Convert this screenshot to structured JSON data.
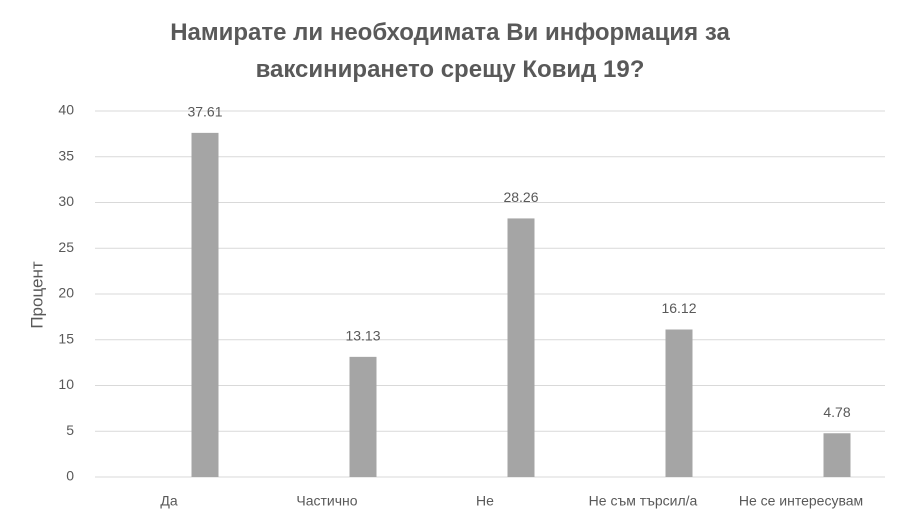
{
  "chart_data": {
    "type": "bar",
    "title": "Намирате ли необходимата Ви информация за ваксинирането срещу Ковид 19?",
    "y_label": "Процент",
    "categories": [
      "Да",
      "Частично",
      "Не",
      "Не съм търсил/а",
      "Не се интересувам"
    ],
    "values": [
      37.61,
      13.13,
      28.26,
      16.12,
      4.78
    ],
    "color": "#a5a5a5",
    "ylim": [
      0,
      40
    ],
    "yticks": [
      0,
      5,
      10,
      15,
      20,
      25,
      30,
      35,
      40
    ],
    "grid": true
  }
}
